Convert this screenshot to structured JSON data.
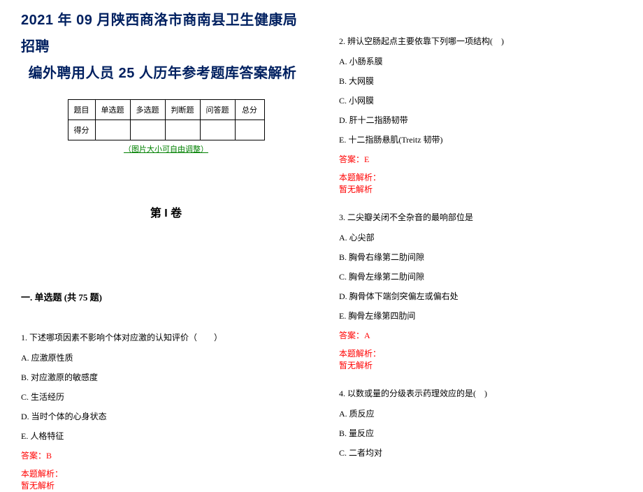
{
  "title": {
    "line1": "2021 年 09 月陕西商洛市商南县卫生健康局招聘",
    "line2": "编外聘用人员 25 人历年参考题库答案解析"
  },
  "score_table": {
    "row1": [
      "题目",
      "单选题",
      "多选题",
      "判断题",
      "问答题",
      "总分"
    ],
    "row2_label": "得分"
  },
  "img_note": "（图片大小可自由调整）",
  "volume_title": "第 I 卷",
  "section_header": "一. 单选题 (共 75 题)",
  "q1": {
    "stem": "1. 下述哪项因素不影响个体对应激的认知评价（　　）",
    "A": "A. 应激原性质",
    "B": "B. 对应激原的敏感度",
    "C": "C. 生活经历",
    "D": "D. 当时个体的心身状态",
    "E": "E. 人格特征",
    "answer": "答案：B",
    "analysis_label": "本题解析：",
    "analysis_body": "暂无解析"
  },
  "q2": {
    "stem": "2. 辨认空肠起点主要依靠下列哪一项结构(　)",
    "A": "A. 小肠系膜",
    "B": "B. 大网膜",
    "C": "C. 小网膜",
    "D": "D. 肝十二指肠韧带",
    "E": "E. 十二指肠悬肌(Treitz 韧带)",
    "answer": "答案：E",
    "analysis_label": "本题解析：",
    "analysis_body": "暂无解析"
  },
  "q3": {
    "stem": "3. 二尖瓣关闭不全杂音的最响部位是",
    "A": "A. 心尖部",
    "B": "B. 胸骨右缘第二肋间隙",
    "C": "C. 胸骨左缘第二肋间隙",
    "D": "D. 胸骨体下端剑突偏左或偏右处",
    "E": "E. 胸骨左缘第四肋间",
    "answer": "答案：A",
    "analysis_label": "本题解析：",
    "analysis_body": "暂无解析"
  },
  "q4": {
    "stem": "4. 以数或量的分级表示药理效应的是(　)",
    "A": "A. 质反应",
    "B": "B. 量反应",
    "C": "C. 二者均对"
  },
  "colors": {
    "title_color": "#002060",
    "note_color": "#008000",
    "answer_color": "#ff0000",
    "text_color": "#000000",
    "background": "#ffffff",
    "border": "#000000"
  }
}
